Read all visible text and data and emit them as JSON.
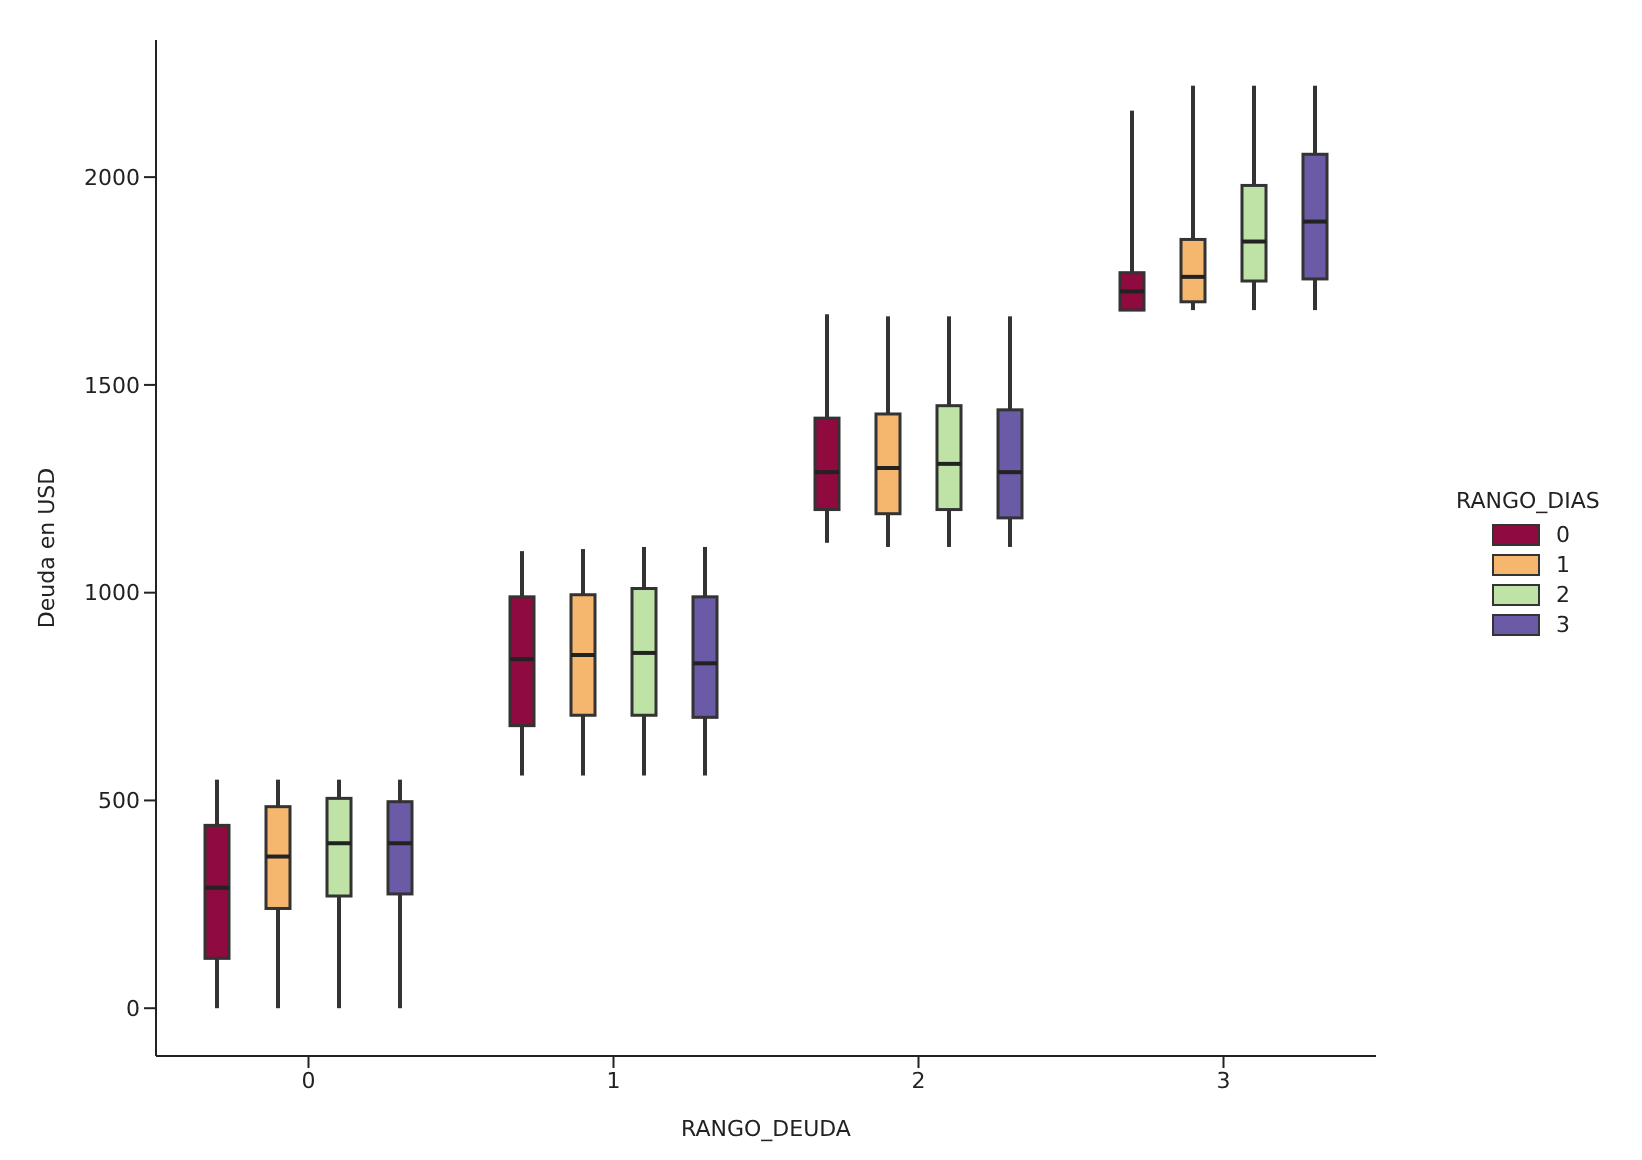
{
  "chart_data": {
    "type": "box",
    "xlabel": "RANGO_DEUDA",
    "ylabel": "Deuda en USD",
    "legend_title": "RANGO_DIAS",
    "legend": "right",
    "grid": false,
    "categories": [
      "0",
      "1",
      "2",
      "3"
    ],
    "ylim": [
      -115,
      2330
    ],
    "yticks": [
      0,
      500,
      1000,
      1500,
      2000
    ],
    "series": [
      {
        "name": "0",
        "color": "#8e0a3f",
        "boxes": [
          {
            "low": 0,
            "q1": 120,
            "median": 290,
            "q3": 440,
            "high": 550
          },
          {
            "low": 560,
            "q1": 680,
            "median": 840,
            "q3": 990,
            "high": 1100
          },
          {
            "low": 1120,
            "q1": 1200,
            "median": 1290,
            "q3": 1420,
            "high": 1670
          },
          {
            "low": 1680,
            "q1": 1680,
            "median": 1725,
            "q3": 1770,
            "high": 2160
          }
        ]
      },
      {
        "name": "1",
        "color": "#f5b66e",
        "boxes": [
          {
            "low": 0,
            "q1": 240,
            "median": 365,
            "q3": 485,
            "high": 550
          },
          {
            "low": 560,
            "q1": 705,
            "median": 850,
            "q3": 995,
            "high": 1105
          },
          {
            "low": 1110,
            "q1": 1190,
            "median": 1300,
            "q3": 1430,
            "high": 1665
          },
          {
            "low": 1680,
            "q1": 1700,
            "median": 1760,
            "q3": 1850,
            "high": 2220
          }
        ]
      },
      {
        "name": "2",
        "color": "#bfe3a6",
        "boxes": [
          {
            "low": 0,
            "q1": 270,
            "median": 397,
            "q3": 505,
            "high": 550
          },
          {
            "low": 560,
            "q1": 705,
            "median": 855,
            "q3": 1010,
            "high": 1110
          },
          {
            "low": 1110,
            "q1": 1200,
            "median": 1310,
            "q3": 1450,
            "high": 1665
          },
          {
            "low": 1680,
            "q1": 1750,
            "median": 1845,
            "q3": 1980,
            "high": 2220
          }
        ]
      },
      {
        "name": "3",
        "color": "#6b5aa6",
        "boxes": [
          {
            "low": 0,
            "q1": 275,
            "median": 397,
            "q3": 497,
            "high": 550
          },
          {
            "low": 560,
            "q1": 700,
            "median": 830,
            "q3": 990,
            "high": 1110
          },
          {
            "low": 1110,
            "q1": 1180,
            "median": 1290,
            "q3": 1440,
            "high": 1665
          },
          {
            "low": 1680,
            "q1": 1755,
            "median": 1893,
            "q3": 2055,
            "high": 2220
          }
        ]
      }
    ]
  }
}
